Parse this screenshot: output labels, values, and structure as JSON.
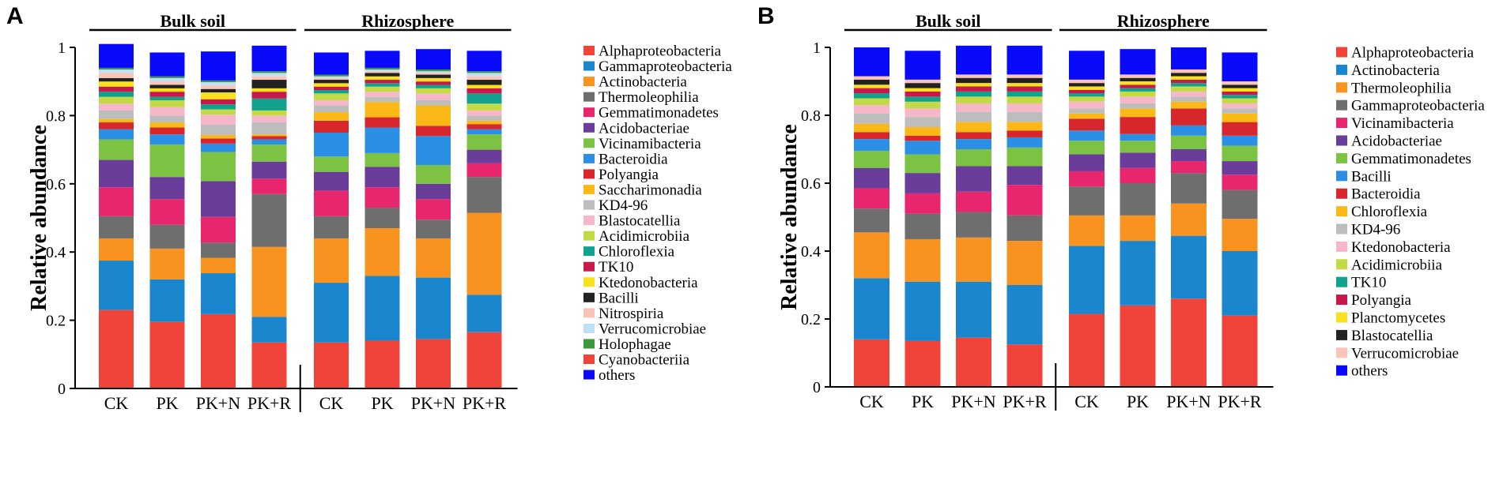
{
  "chart_data": [
    {
      "type": "bar",
      "stacked": true,
      "panel": "A",
      "xlabel": "",
      "ylabel": "Relative abundance",
      "ylim": [
        0,
        1
      ],
      "yticks": [
        "0",
        "0.2",
        "0.4",
        "0.6",
        "0.8",
        "1"
      ],
      "groups": [
        {
          "name": "Bulk soil",
          "categories": [
            "CK",
            "PK",
            "PK+N",
            "PK+R"
          ]
        },
        {
          "name": "Rhizosphere",
          "categories": [
            "CK",
            "PK",
            "PK+N",
            "PK+R"
          ]
        }
      ],
      "categories": [
        "CK",
        "PK",
        "PK+N",
        "PK+R",
        "CK",
        "PK",
        "PK+N",
        "PK+R"
      ],
      "legend": "right",
      "series": [
        {
          "name": "Alphaproteobacteria",
          "color": "#f0443a",
          "values": [
            0.23,
            0.195,
            0.218,
            0.135,
            0.135,
            0.14,
            0.145,
            0.165
          ]
        },
        {
          "name": "Gammaproteobacteria",
          "color": "#1a86cd",
          "values": [
            0.145,
            0.125,
            0.12,
            0.075,
            0.175,
            0.19,
            0.18,
            0.11
          ]
        },
        {
          "name": "Actinobacteria",
          "color": "#f7931e",
          "values": [
            0.065,
            0.09,
            0.045,
            0.205,
            0.13,
            0.14,
            0.115,
            0.24
          ]
        },
        {
          "name": "Thermoleophilia",
          "color": "#6e6e6e",
          "values": [
            0.065,
            0.07,
            0.045,
            0.155,
            0.065,
            0.06,
            0.055,
            0.105
          ]
        },
        {
          "name": "Gemmatimonadetes",
          "color": "#e8266e",
          "values": [
            0.085,
            0.075,
            0.075,
            0.045,
            0.075,
            0.06,
            0.06,
            0.04
          ]
        },
        {
          "name": "Acidobacteriae",
          "color": "#6a3d9a",
          "values": [
            0.08,
            0.065,
            0.105,
            0.05,
            0.055,
            0.06,
            0.045,
            0.04
          ]
        },
        {
          "name": "Vicinamibacteria",
          "color": "#7cc243",
          "values": [
            0.06,
            0.095,
            0.085,
            0.05,
            0.045,
            0.04,
            0.055,
            0.045
          ]
        },
        {
          "name": "Bacteroidia",
          "color": "#2b8fe6",
          "values": [
            0.03,
            0.03,
            0.025,
            0.015,
            0.07,
            0.075,
            0.085,
            0.015
          ]
        },
        {
          "name": "Polyangia",
          "color": "#d7262c",
          "values": [
            0.02,
            0.02,
            0.015,
            0.01,
            0.035,
            0.03,
            0.03,
            0.015
          ]
        },
        {
          "name": "Saccharimonadia",
          "color": "#fbb917",
          "values": [
            0.01,
            0.015,
            0.01,
            0.005,
            0.025,
            0.045,
            0.06,
            0.01
          ]
        },
        {
          "name": "KD4-96",
          "color": "#bdbdbd",
          "values": [
            0.025,
            0.02,
            0.03,
            0.035,
            0.02,
            0.015,
            0.015,
            0.015
          ]
        },
        {
          "name": "Blastocatellia",
          "color": "#f6b7c8",
          "values": [
            0.02,
            0.025,
            0.03,
            0.02,
            0.015,
            0.015,
            0.02,
            0.015
          ]
        },
        {
          "name": "Acidimicrobiia",
          "color": "#c3d946",
          "values": [
            0.02,
            0.02,
            0.015,
            0.015,
            0.02,
            0.015,
            0.015,
            0.02
          ]
        },
        {
          "name": "Chloroflexia",
          "color": "#12a18c",
          "values": [
            0.015,
            0.01,
            0.015,
            0.035,
            0.01,
            0.01,
            0.01,
            0.03
          ]
        },
        {
          "name": "TK10",
          "color": "#c9184a",
          "values": [
            0.015,
            0.015,
            0.015,
            0.02,
            0.01,
            0.01,
            0.01,
            0.015
          ]
        },
        {
          "name": "Ktedonobacteria",
          "color": "#f9e21d",
          "values": [
            0.015,
            0.01,
            0.02,
            0.01,
            0.01,
            0.01,
            0.01,
            0.01
          ]
        },
        {
          "name": "Bacilli",
          "color": "#222222",
          "values": [
            0.01,
            0.01,
            0.01,
            0.025,
            0.01,
            0.01,
            0.01,
            0.015
          ]
        },
        {
          "name": "Nitrospiria",
          "color": "#fbc4b6",
          "values": [
            0.015,
            0.01,
            0.01,
            0.01,
            0.005,
            0.005,
            0.005,
            0.01
          ]
        },
        {
          "name": "Verrucomicrobiae",
          "color": "#bfe0f4",
          "values": [
            0.01,
            0.01,
            0.01,
            0.01,
            0.005,
            0.005,
            0.005,
            0.01
          ]
        },
        {
          "name": "Holophagae",
          "color": "#3a9a3a",
          "values": [
            0.005,
            0.005,
            0.005,
            0.005,
            0.005,
            0.005,
            0.005,
            0.005
          ]
        },
        {
          "name": "Cyanobacteriia",
          "color": "#f0443a",
          "values": [
            0.0,
            0.0,
            0.0,
            0.0,
            0.0,
            0.0,
            0.0,
            0.0
          ]
        },
        {
          "name": "others",
          "color": "#0a0afa",
          "values": [
            0.07,
            0.07,
            0.085,
            0.075,
            0.065,
            0.05,
            0.06,
            0.06
          ]
        }
      ]
    },
    {
      "type": "bar",
      "stacked": true,
      "panel": "B",
      "xlabel": "",
      "ylabel": "Relative abundance",
      "ylim": [
        0,
        1
      ],
      "yticks": [
        "0",
        "0.2",
        "0.4",
        "0.6",
        "0.8",
        "1"
      ],
      "groups": [
        {
          "name": "Bulk soil",
          "categories": [
            "CK",
            "PK",
            "PK+N",
            "PK+R"
          ]
        },
        {
          "name": "Rhizosphere",
          "categories": [
            "CK",
            "PK",
            "PK+N",
            "PK+R"
          ]
        }
      ],
      "categories": [
        "CK",
        "PK",
        "PK+N",
        "PK+R",
        "CK",
        "PK",
        "PK+N",
        "PK+R"
      ],
      "legend": "right",
      "series": [
        {
          "name": "Alphaproteobacteria",
          "color": "#f0443a",
          "values": [
            0.14,
            0.135,
            0.145,
            0.125,
            0.215,
            0.24,
            0.26,
            0.21
          ]
        },
        {
          "name": "Actinobacteria",
          "color": "#1a86cd",
          "values": [
            0.18,
            0.175,
            0.165,
            0.175,
            0.2,
            0.19,
            0.185,
            0.19
          ]
        },
        {
          "name": "Thermoleophilia",
          "color": "#f7931e",
          "values": [
            0.135,
            0.125,
            0.13,
            0.13,
            0.09,
            0.075,
            0.095,
            0.095
          ]
        },
        {
          "name": "Gammaproteobacteria",
          "color": "#6e6e6e",
          "values": [
            0.07,
            0.075,
            0.075,
            0.075,
            0.085,
            0.095,
            0.09,
            0.085
          ]
        },
        {
          "name": "Vicinamibacteria",
          "color": "#e8266e",
          "values": [
            0.06,
            0.06,
            0.06,
            0.09,
            0.045,
            0.045,
            0.035,
            0.045
          ]
        },
        {
          "name": "Acidobacteriae",
          "color": "#6a3d9a",
          "values": [
            0.06,
            0.06,
            0.075,
            0.055,
            0.05,
            0.045,
            0.035,
            0.04
          ]
        },
        {
          "name": "Gemmatimonadetes",
          "color": "#7cc243",
          "values": [
            0.05,
            0.055,
            0.05,
            0.055,
            0.04,
            0.035,
            0.04,
            0.045
          ]
        },
        {
          "name": "Bacilli",
          "color": "#2b8fe6",
          "values": [
            0.035,
            0.04,
            0.03,
            0.03,
            0.03,
            0.02,
            0.03,
            0.03
          ]
        },
        {
          "name": "Bacteroidia",
          "color": "#d7262c",
          "values": [
            0.02,
            0.015,
            0.02,
            0.02,
            0.035,
            0.05,
            0.05,
            0.04
          ]
        },
        {
          "name": "Chloroflexia",
          "color": "#fbb917",
          "values": [
            0.025,
            0.025,
            0.03,
            0.025,
            0.015,
            0.025,
            0.02,
            0.025
          ]
        },
        {
          "name": "KD4-96",
          "color": "#bdbdbd",
          "values": [
            0.03,
            0.03,
            0.03,
            0.03,
            0.015,
            0.015,
            0.015,
            0.015
          ]
        },
        {
          "name": "Ktedonobacteria",
          "color": "#f6b7c8",
          "values": [
            0.025,
            0.025,
            0.025,
            0.025,
            0.02,
            0.02,
            0.015,
            0.015
          ]
        },
        {
          "name": "Acidimicrobiia",
          "color": "#c3d946",
          "values": [
            0.02,
            0.02,
            0.02,
            0.02,
            0.015,
            0.015,
            0.015,
            0.015
          ]
        },
        {
          "name": "TK10",
          "color": "#12a18c",
          "values": [
            0.015,
            0.015,
            0.015,
            0.015,
            0.01,
            0.01,
            0.01,
            0.01
          ]
        },
        {
          "name": "Polyangia",
          "color": "#c9184a",
          "values": [
            0.015,
            0.015,
            0.015,
            0.015,
            0.01,
            0.01,
            0.01,
            0.01
          ]
        },
        {
          "name": "Planctomycetes",
          "color": "#f9e21d",
          "values": [
            0.01,
            0.01,
            0.01,
            0.01,
            0.01,
            0.01,
            0.01,
            0.01
          ]
        },
        {
          "name": "Blastocatellia",
          "color": "#222222",
          "values": [
            0.015,
            0.015,
            0.015,
            0.015,
            0.01,
            0.01,
            0.01,
            0.01
          ]
        },
        {
          "name": "Verrucomicrobiae",
          "color": "#fbc4b6",
          "values": [
            0.01,
            0.01,
            0.01,
            0.01,
            0.01,
            0.01,
            0.01,
            0.01
          ]
        },
        {
          "name": "others",
          "color": "#0a0afa",
          "values": [
            0.085,
            0.085,
            0.085,
            0.085,
            0.085,
            0.075,
            0.065,
            0.085
          ]
        }
      ]
    }
  ]
}
